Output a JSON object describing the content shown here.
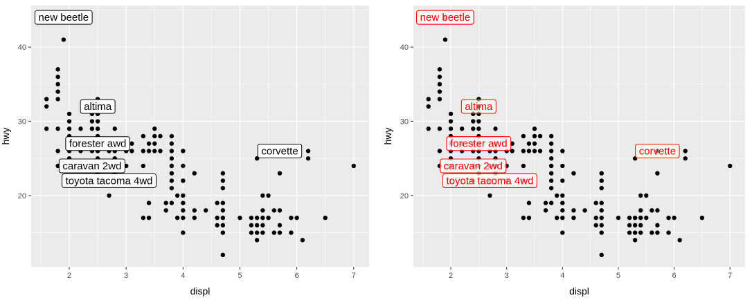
{
  "chart_data": [
    {
      "type": "scatter",
      "panel": "left",
      "label_style": "boxed-black",
      "xlabel": "displ",
      "ylabel": "hwy",
      "xlim": [
        1.33,
        7.27
      ],
      "ylim": [
        10.4,
        45.6
      ],
      "x_ticks": [
        2,
        3,
        4,
        5,
        6,
        7
      ],
      "y_ticks": [
        20,
        30,
        40
      ],
      "grid": true,
      "labels": [
        {
          "text": "new beetle",
          "x": 1.9,
          "y": 44
        },
        {
          "text": "altima",
          "x": 2.5,
          "y": 32
        },
        {
          "text": "forester awd",
          "x": 2.5,
          "y": 27
        },
        {
          "text": "corvette",
          "x": 5.7,
          "y": 26
        },
        {
          "text": "caravan 2wd",
          "x": 2.4,
          "y": 24
        },
        {
          "text": "toyota tacoma 4wd",
          "x": 2.7,
          "y": 22
        }
      ]
    },
    {
      "type": "scatter",
      "panel": "right",
      "label_style": "boxed-red-transparent",
      "xlabel": "displ",
      "ylabel": "hwy",
      "xlim": [
        1.33,
        7.27
      ],
      "ylim": [
        10.4,
        45.6
      ],
      "x_ticks": [
        2,
        3,
        4,
        5,
        6,
        7
      ],
      "y_ticks": [
        20,
        30,
        40
      ],
      "grid": true,
      "labels": [
        {
          "text": "new beetle",
          "x": 1.9,
          "y": 44
        },
        {
          "text": "new beetle",
          "x": 1.9,
          "y": 44
        },
        {
          "text": "altima",
          "x": 2.5,
          "y": 32
        },
        {
          "text": "forester awd",
          "x": 2.5,
          "y": 27
        },
        {
          "text": "forester awd",
          "x": 2.5,
          "y": 27
        },
        {
          "text": "corvette",
          "x": 5.7,
          "y": 26
        },
        {
          "text": "caravan 2wd",
          "x": 2.4,
          "y": 24
        },
        {
          "text": "caravan 2wd",
          "x": 2.4,
          "y": 24
        },
        {
          "text": "toyota tacoma 4wd",
          "x": 2.7,
          "y": 22
        },
        {
          "text": "toyota tacoma 4wd",
          "x": 2.7,
          "y": 22
        }
      ]
    }
  ],
  "points": [
    [
      1.6,
      33
    ],
    [
      1.6,
      32
    ],
    [
      1.6,
      29
    ],
    [
      1.8,
      37
    ],
    [
      1.8,
      36
    ],
    [
      1.8,
      35
    ],
    [
      1.8,
      34
    ],
    [
      1.8,
      33
    ],
    [
      1.8,
      29
    ],
    [
      1.8,
      26
    ],
    [
      1.8,
      24
    ],
    [
      1.9,
      41
    ],
    [
      1.9,
      44
    ],
    [
      2.0,
      31
    ],
    [
      2.0,
      30
    ],
    [
      2.0,
      29
    ],
    [
      2.0,
      28
    ],
    [
      2.0,
      27
    ],
    [
      2.0,
      26
    ],
    [
      2.0,
      25
    ],
    [
      2.0,
      24
    ],
    [
      2.2,
      29
    ],
    [
      2.2,
      27
    ],
    [
      2.2,
      26
    ],
    [
      2.4,
      31
    ],
    [
      2.4,
      30
    ],
    [
      2.4,
      29
    ],
    [
      2.4,
      27
    ],
    [
      2.4,
      26
    ],
    [
      2.4,
      24
    ],
    [
      2.4,
      22
    ],
    [
      2.5,
      33
    ],
    [
      2.5,
      32
    ],
    [
      2.5,
      31
    ],
    [
      2.5,
      30
    ],
    [
      2.5,
      29
    ],
    [
      2.5,
      28
    ],
    [
      2.5,
      27
    ],
    [
      2.5,
      26
    ],
    [
      2.5,
      25
    ],
    [
      2.5,
      24
    ],
    [
      2.5,
      23
    ],
    [
      2.7,
      26
    ],
    [
      2.7,
      24
    ],
    [
      2.7,
      22
    ],
    [
      2.7,
      20
    ],
    [
      2.8,
      29
    ],
    [
      2.8,
      27
    ],
    [
      2.8,
      26
    ],
    [
      2.8,
      25
    ],
    [
      2.8,
      24
    ],
    [
      2.8,
      23
    ],
    [
      3.0,
      26
    ],
    [
      3.0,
      24
    ],
    [
      3.0,
      22
    ],
    [
      3.1,
      27
    ],
    [
      3.1,
      26
    ],
    [
      3.3,
      28
    ],
    [
      3.3,
      26
    ],
    [
      3.3,
      24
    ],
    [
      3.3,
      22
    ],
    [
      3.3,
      17
    ],
    [
      3.4,
      27
    ],
    [
      3.4,
      26
    ],
    [
      3.4,
      19
    ],
    [
      3.4,
      17
    ],
    [
      3.5,
      29
    ],
    [
      3.5,
      28
    ],
    [
      3.5,
      27
    ],
    [
      3.5,
      26
    ],
    [
      3.6,
      28
    ],
    [
      3.6,
      26
    ],
    [
      3.7,
      19
    ],
    [
      3.7,
      18
    ],
    [
      3.8,
      28
    ],
    [
      3.8,
      27
    ],
    [
      3.8,
      26
    ],
    [
      3.8,
      25
    ],
    [
      3.8,
      24
    ],
    [
      3.8,
      23
    ],
    [
      3.8,
      22
    ],
    [
      3.8,
      21
    ],
    [
      3.8,
      19
    ],
    [
      3.9,
      20
    ],
    [
      3.9,
      17
    ],
    [
      4.0,
      26
    ],
    [
      4.0,
      24
    ],
    [
      4.0,
      22
    ],
    [
      4.0,
      20
    ],
    [
      4.0,
      19
    ],
    [
      4.0,
      18
    ],
    [
      4.0,
      17
    ],
    [
      4.0,
      15
    ],
    [
      4.2,
      23
    ],
    [
      4.2,
      18
    ],
    [
      4.2,
      17
    ],
    [
      4.4,
      18
    ],
    [
      4.6,
      19
    ],
    [
      4.6,
      17
    ],
    [
      4.6,
      16
    ],
    [
      4.7,
      23
    ],
    [
      4.7,
      22
    ],
    [
      4.7,
      21
    ],
    [
      4.7,
      19
    ],
    [
      4.7,
      18
    ],
    [
      4.7,
      17
    ],
    [
      4.7,
      16
    ],
    [
      4.7,
      15
    ],
    [
      4.7,
      12
    ],
    [
      5.0,
      17
    ],
    [
      5.2,
      17
    ],
    [
      5.2,
      16
    ],
    [
      5.2,
      15
    ],
    [
      5.3,
      25
    ],
    [
      5.3,
      17
    ],
    [
      5.3,
      16
    ],
    [
      5.3,
      15
    ],
    [
      5.3,
      14
    ],
    [
      5.4,
      20
    ],
    [
      5.4,
      18
    ],
    [
      5.4,
      17
    ],
    [
      5.4,
      16
    ],
    [
      5.4,
      15
    ],
    [
      5.5,
      20
    ],
    [
      5.5,
      17
    ],
    [
      5.6,
      18
    ],
    [
      5.6,
      15
    ],
    [
      5.7,
      26
    ],
    [
      5.7,
      23
    ],
    [
      5.7,
      18
    ],
    [
      5.7,
      16
    ],
    [
      5.7,
      15
    ],
    [
      5.9,
      17
    ],
    [
      5.9,
      15
    ],
    [
      6.0,
      17
    ],
    [
      6.1,
      14
    ],
    [
      6.2,
      26
    ],
    [
      6.2,
      25
    ],
    [
      6.5,
      17
    ],
    [
      7.0,
      24
    ]
  ]
}
